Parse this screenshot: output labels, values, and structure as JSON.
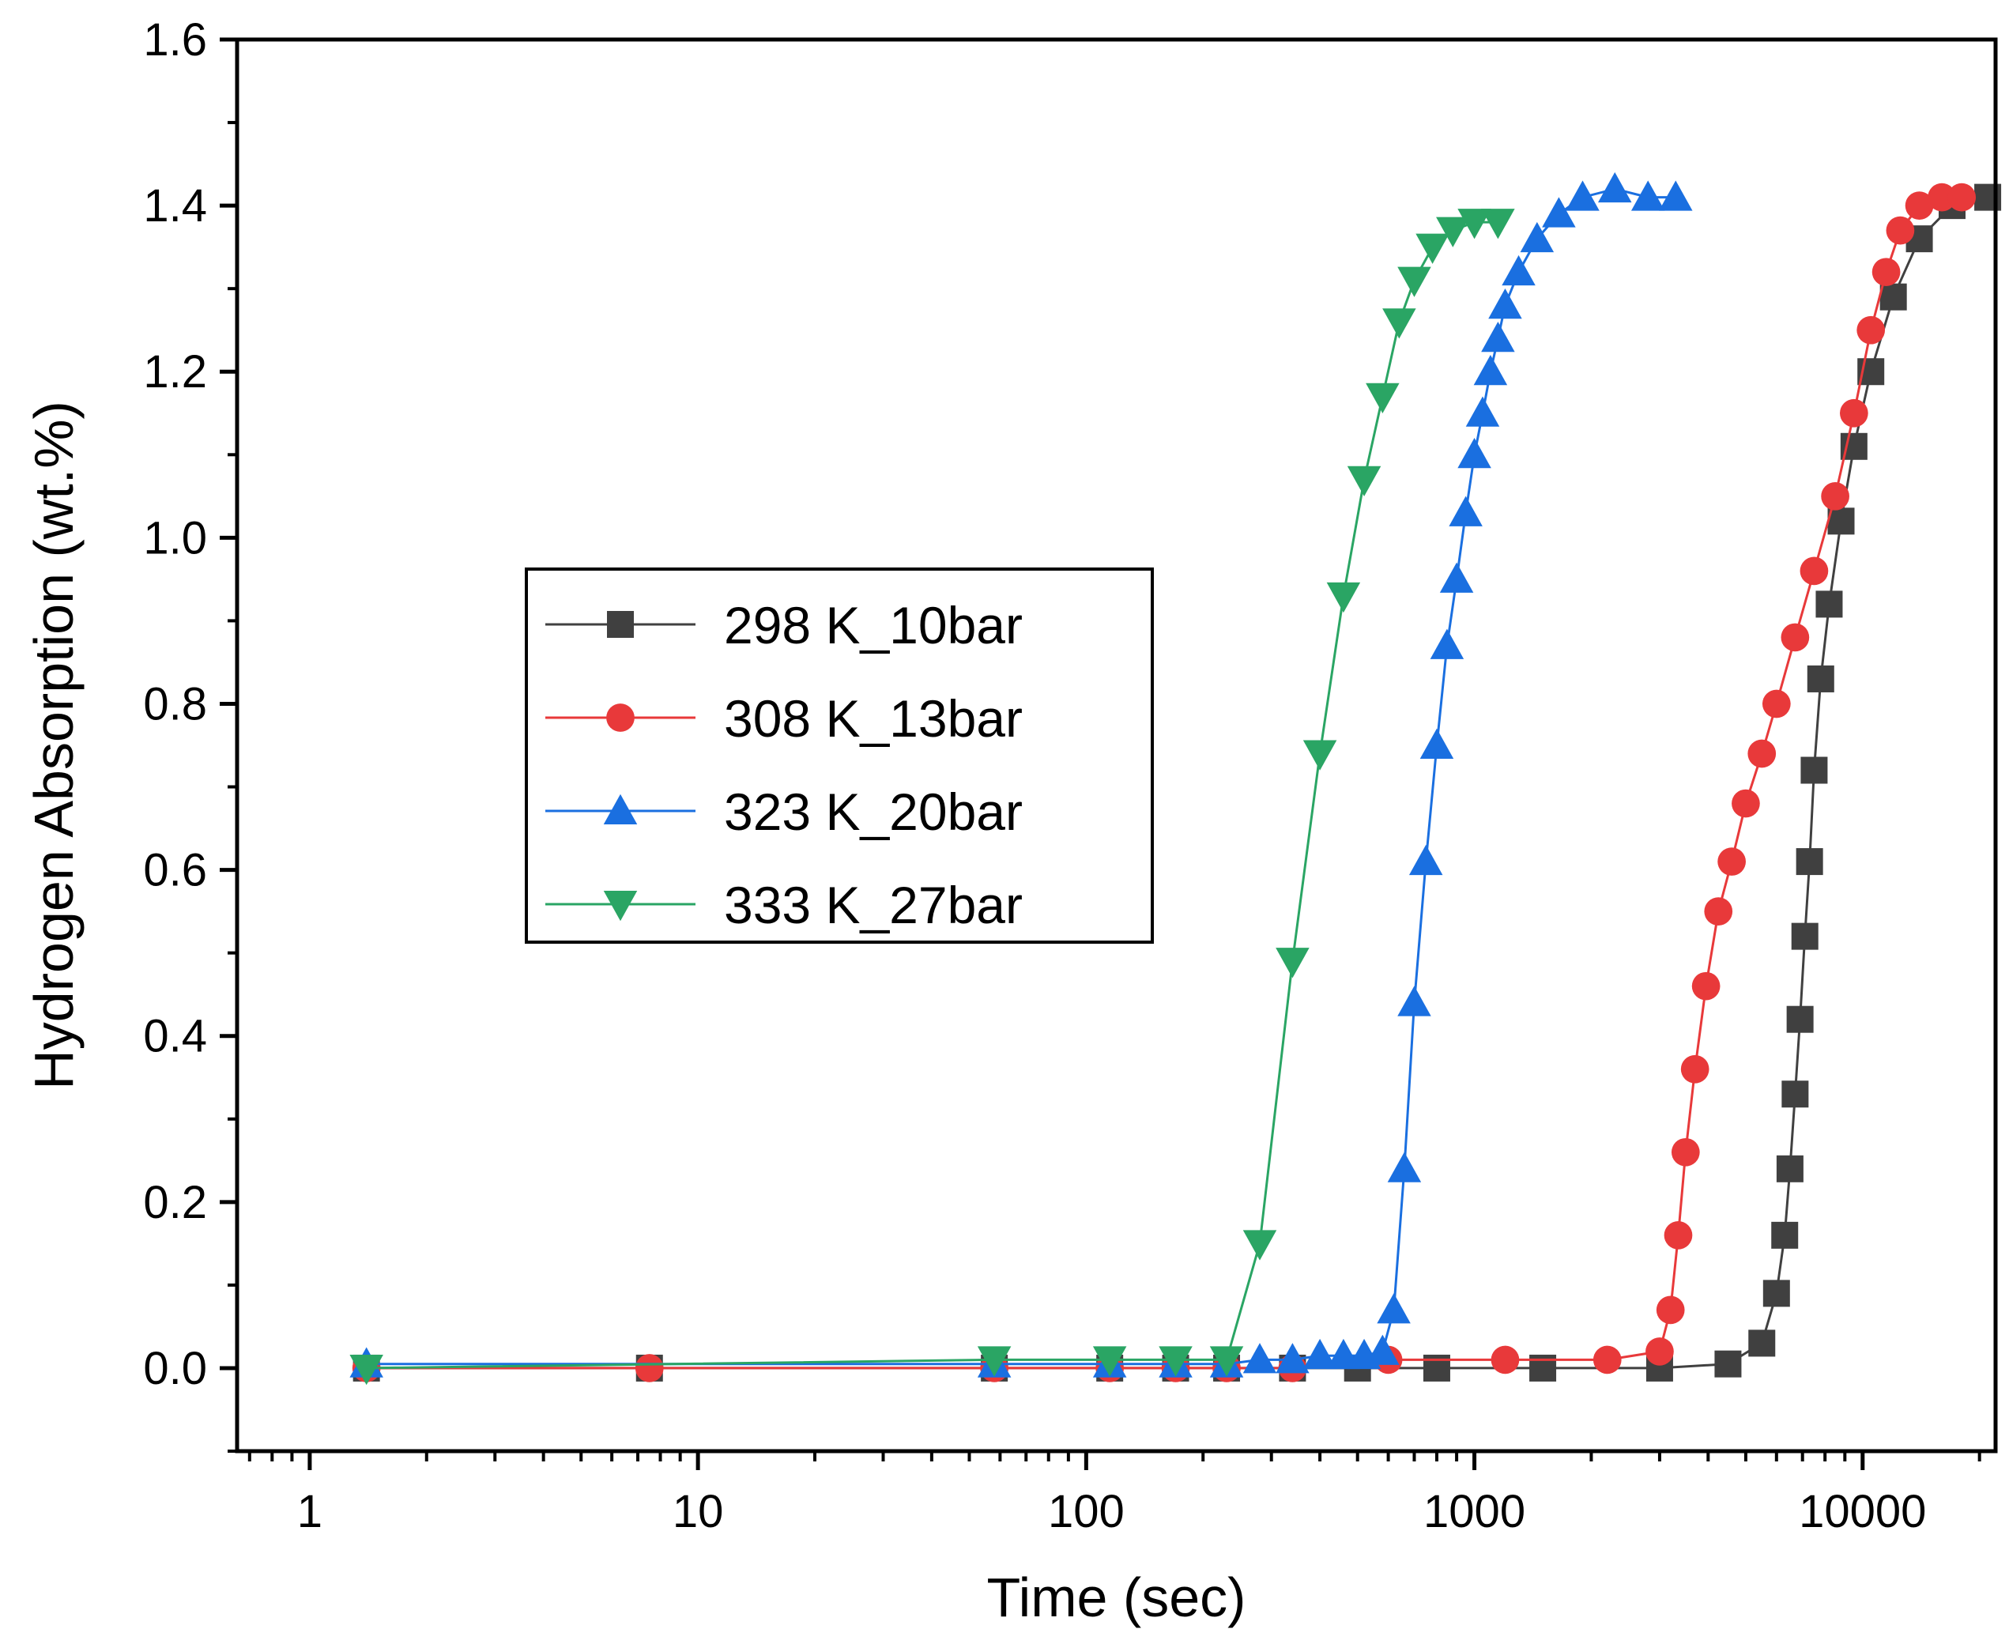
{
  "chart_data": {
    "type": "scatter",
    "xscale": "log",
    "xlabel": "Time (sec)",
    "ylabel": "Hydrogen Absorption (wt.%)",
    "xlim": [
      0.65,
      22000
    ],
    "ylim": [
      -0.1,
      1.6
    ],
    "xticks": [
      {
        "value": 1,
        "label": "1"
      },
      {
        "value": 10,
        "label": "10"
      },
      {
        "value": 100,
        "label": "100"
      },
      {
        "value": 1000,
        "label": "1000"
      },
      {
        "value": 10000,
        "label": "10000"
      }
    ],
    "yticks": [
      {
        "value": 0.0,
        "label": "0.0"
      },
      {
        "value": 0.2,
        "label": "0.2"
      },
      {
        "value": 0.4,
        "label": "0.4"
      },
      {
        "value": 0.6,
        "label": "0.6"
      },
      {
        "value": 0.8,
        "label": "0.8"
      },
      {
        "value": 1.0,
        "label": "1.0"
      },
      {
        "value": 1.2,
        "label": "1.2"
      },
      {
        "value": 1.4,
        "label": "1.4"
      },
      {
        "value": 1.6,
        "label": "1.6"
      }
    ],
    "legend_position": "center-left",
    "series": [
      {
        "name": "298 K_10bar",
        "color": "#404040",
        "marker": "square",
        "x": [
          1.4,
          7.5,
          58,
          115,
          170,
          230,
          340,
          500,
          800,
          1500,
          3000,
          4500,
          5500,
          6000,
          6300,
          6500,
          6700,
          6900,
          7100,
          7300,
          7500,
          7800,
          8200,
          8800,
          9500,
          10500,
          12000,
          14000,
          17000,
          21000
        ],
        "y": [
          0.0,
          0.0,
          0.0,
          0.0,
          0.0,
          0.0,
          0.0,
          0.0,
          0.0,
          0.0,
          0.0,
          0.005,
          0.03,
          0.09,
          0.16,
          0.24,
          0.33,
          0.42,
          0.52,
          0.61,
          0.72,
          0.83,
          0.92,
          1.02,
          1.11,
          1.2,
          1.29,
          1.36,
          1.4,
          1.41
        ]
      },
      {
        "name": "308 K_13bar",
        "color": "#e8393a",
        "marker": "circle",
        "x": [
          1.4,
          7.5,
          58,
          115,
          170,
          230,
          340,
          600,
          1200,
          2200,
          3000,
          3200,
          3350,
          3500,
          3700,
          3950,
          4250,
          4600,
          5000,
          5500,
          6000,
          6700,
          7500,
          8500,
          9500,
          10500,
          11500,
          12500,
          14000,
          16000,
          18000
        ],
        "y": [
          0.0,
          0.0,
          0.0,
          0.0,
          0.0,
          0.0,
          0.0,
          0.01,
          0.01,
          0.01,
          0.02,
          0.07,
          0.16,
          0.26,
          0.36,
          0.46,
          0.55,
          0.61,
          0.68,
          0.74,
          0.8,
          0.88,
          0.96,
          1.05,
          1.15,
          1.25,
          1.32,
          1.37,
          1.4,
          1.41,
          1.41
        ]
      },
      {
        "name": "323 K_20bar",
        "color": "#1a6fe0",
        "marker": "triangle-up",
        "x": [
          1.4,
          58,
          115,
          170,
          230,
          280,
          340,
          400,
          460,
          520,
          580,
          620,
          660,
          700,
          750,
          800,
          850,
          900,
          950,
          1000,
          1050,
          1100,
          1150,
          1200,
          1300,
          1450,
          1650,
          1900,
          2300,
          2800,
          3300
        ],
        "y": [
          0.005,
          0.005,
          0.005,
          0.005,
          0.005,
          0.01,
          0.01,
          0.015,
          0.015,
          0.015,
          0.02,
          0.07,
          0.24,
          0.44,
          0.61,
          0.75,
          0.87,
          0.95,
          1.03,
          1.1,
          1.15,
          1.2,
          1.24,
          1.28,
          1.32,
          1.36,
          1.39,
          1.41,
          1.42,
          1.41,
          1.41
        ]
      },
      {
        "name": "333 K_27bar",
        "color": "#2aa564",
        "marker": "triangle-down",
        "x": [
          1.4,
          58,
          115,
          170,
          230,
          280,
          340,
          400,
          460,
          520,
          580,
          640,
          700,
          780,
          880,
          1000,
          1150
        ],
        "y": [
          0.0,
          0.01,
          0.01,
          0.01,
          0.01,
          0.15,
          0.49,
          0.74,
          0.93,
          1.07,
          1.17,
          1.26,
          1.31,
          1.35,
          1.37,
          1.38,
          1.38
        ]
      }
    ]
  }
}
